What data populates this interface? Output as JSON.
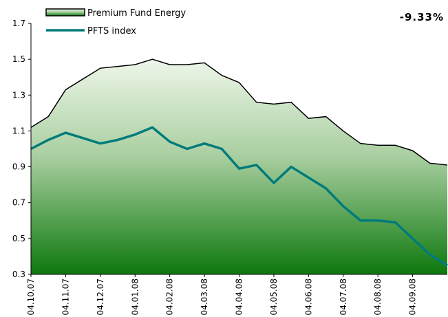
{
  "chart_data": {
    "type": "area_line",
    "annotation": "-9.33%",
    "x": [
      "04.10.07",
      "18.10.07",
      "04.11.07",
      "18.11.07",
      "04.12.07",
      "18.12.07",
      "04.01.08",
      "18.01.08",
      "04.02.08",
      "18.02.08",
      "04.03.08",
      "18.03.08",
      "04.04.08",
      "18.04.08",
      "04.05.08",
      "18.05.08",
      "04.06.08",
      "18.06.08",
      "04.07.08",
      "18.07.08",
      "04.08.08",
      "18.08.08",
      "04.09.08",
      "18.09.08",
      "04.10.08"
    ],
    "xticks": [
      "04.10.07",
      "04.11.07",
      "04.12.07",
      "04.01.08",
      "04.02.08",
      "04.03.08",
      "04.04.08",
      "04.05.08",
      "04.06.08",
      "04.07.08",
      "04.08.08",
      "04.09.08"
    ],
    "series": [
      {
        "name": "Premium Fund Energy",
        "kind": "area",
        "color": "#000000",
        "values": [
          1.12,
          1.18,
          1.33,
          1.39,
          1.45,
          1.46,
          1.47,
          1.5,
          1.47,
          1.47,
          1.48,
          1.41,
          1.37,
          1.26,
          1.25,
          1.26,
          1.17,
          1.18,
          1.1,
          1.03,
          1.02,
          1.02,
          0.99,
          0.92,
          0.91
        ]
      },
      {
        "name": "PFTS index",
        "kind": "line",
        "color": "#007b7b",
        "values": [
          1.0,
          1.05,
          1.09,
          1.06,
          1.03,
          1.05,
          1.08,
          1.12,
          1.04,
          1.0,
          1.03,
          1.0,
          0.89,
          0.91,
          0.81,
          0.9,
          0.84,
          0.78,
          0.68,
          0.6,
          0.6,
          0.59,
          0.5,
          0.41,
          0.35
        ]
      }
    ],
    "ylim": [
      0.3,
      1.7
    ],
    "yticks": [
      0.3,
      0.5,
      0.7,
      0.9,
      1.1,
      1.3,
      1.5,
      1.7
    ]
  }
}
